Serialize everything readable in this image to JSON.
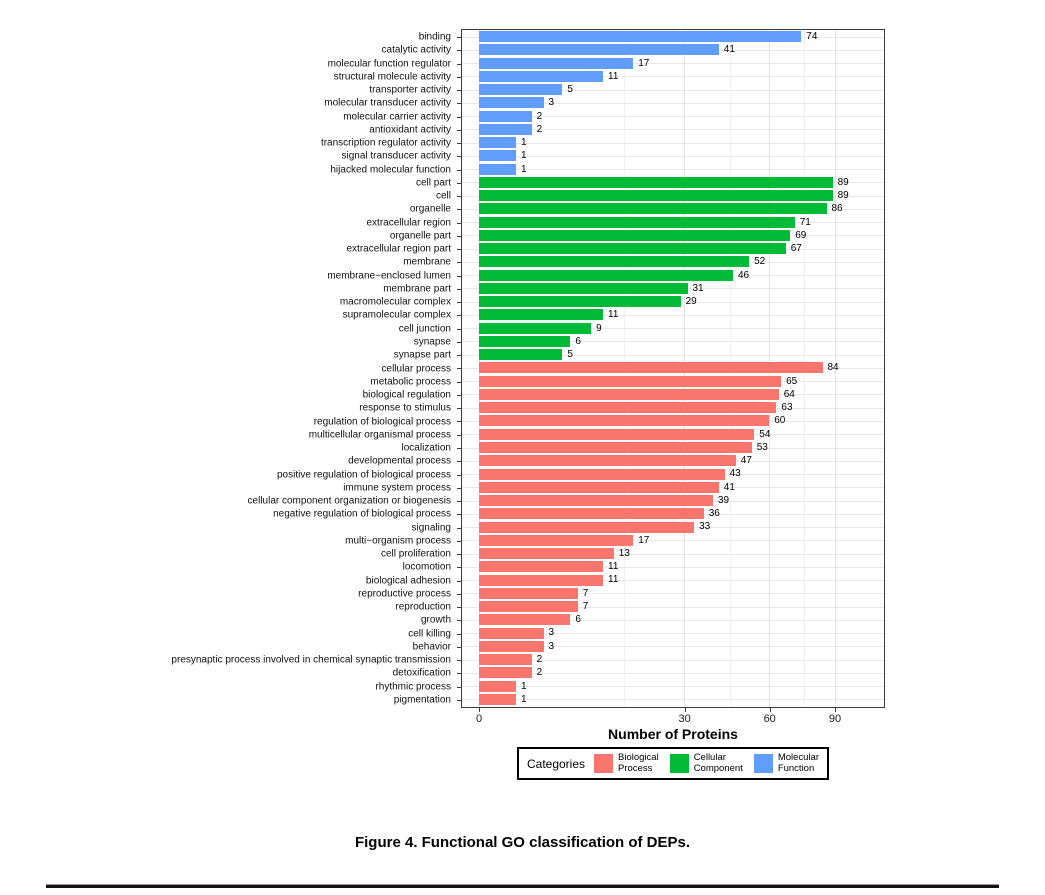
{
  "figure": {
    "caption": "Figure 4. Functional GO classification of DEPs."
  },
  "chart_data": {
    "type": "bar",
    "orientation": "horizontal",
    "x_scale": "sqrt",
    "title": "",
    "xlabel": "Number of Proteins",
    "ylabel": "",
    "xlim": [
      0,
      100
    ],
    "x_ticks": [
      0,
      30,
      60,
      90
    ],
    "x_minor_ticks": [
      15,
      45,
      75
    ],
    "grid": true,
    "legend_position": "bottom",
    "series": [
      {
        "name": "Molecular Function",
        "color": "#619CFF",
        "categories": [
          "binding",
          "catalytic activity",
          "molecular function regulator",
          "structural molecule activity",
          "transporter activity",
          "molecular transducer activity",
          "molecular carrier activity",
          "antioxidant activity",
          "transcription regulator activity",
          "signal transducer activity",
          "hijacked molecular function"
        ],
        "values": [
          74,
          41,
          17,
          11,
          5,
          3,
          2,
          2,
          1,
          1,
          1
        ]
      },
      {
        "name": "Cellular Component",
        "color": "#00BA38",
        "categories": [
          "cell part",
          "cell",
          "organelle",
          "extracellular region",
          "organelle part",
          "extracellular region part",
          "membrane",
          "membrane−enclosed lumen",
          "membrane part",
          "macromolecular complex",
          "supramolecular complex",
          "cell junction",
          "synapse",
          "synapse part"
        ],
        "values": [
          89,
          89,
          86,
          71,
          69,
          67,
          52,
          46,
          31,
          29,
          11,
          9,
          6,
          5
        ]
      },
      {
        "name": "Biological Process",
        "color": "#F8766D",
        "categories": [
          "cellular process",
          "metabolic process",
          "biological regulation",
          "response to stimulus",
          "regulation of biological process",
          "multicellular organismal process",
          "localization",
          "developmental process",
          "positive regulation of biological process",
          "immune system process",
          "cellular component organization or biogenesis",
          "negative regulation of biological process",
          "signaling",
          "multi−organism process",
          "cell proliferation",
          "locomotion",
          "biological adhesion",
          "reproductive process",
          "reproduction",
          "growth",
          "cell killing",
          "behavior",
          "presynaptic process involved in chemical synaptic transmission",
          "detoxification",
          "rhythmic process",
          "pigmentation"
        ],
        "values": [
          84,
          65,
          64,
          63,
          60,
          54,
          53,
          47,
          43,
          41,
          39,
          36,
          33,
          17,
          13,
          11,
          11,
          7,
          7,
          6,
          3,
          3,
          2,
          2,
          1,
          1
        ]
      }
    ]
  },
  "legend": {
    "title": "Categories",
    "items": [
      {
        "label": "Biological Process",
        "lines": [
          "Biological",
          "Process"
        ],
        "color": "#F8766D"
      },
      {
        "label": "Cellular Component",
        "lines": [
          "Cellular",
          "Component"
        ],
        "color": "#00BA38"
      },
      {
        "label": "Molecular Function",
        "lines": [
          "Molecular",
          "Function"
        ],
        "color": "#619CFF"
      }
    ]
  }
}
